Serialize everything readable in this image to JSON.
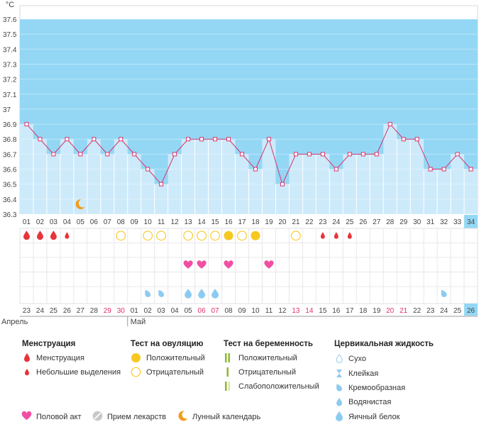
{
  "chart_data": {
    "type": "line",
    "unit_label": "°C",
    "ylim": [
      36.3,
      37.6
    ],
    "y_ticks": [
      "36.3",
      "36.4",
      "36.5",
      "36.6",
      "36.7",
      "36.8",
      "36.9",
      "37",
      "37.1",
      "37.2",
      "37.3",
      "37.4",
      "37.5",
      "37.6"
    ],
    "days": [
      "01",
      "02",
      "03",
      "04",
      "05",
      "06",
      "07",
      "08",
      "09",
      "10",
      "11",
      "12",
      "13",
      "14",
      "15",
      "16",
      "17",
      "18",
      "19",
      "20",
      "21",
      "22",
      "23",
      "24",
      "25",
      "26",
      "27",
      "28",
      "29",
      "30",
      "31",
      "32",
      "33",
      "34"
    ],
    "current_day": "34",
    "temperatures": [
      36.9,
      36.8,
      36.7,
      36.8,
      36.7,
      36.8,
      36.7,
      36.8,
      36.7,
      36.6,
      36.5,
      36.7,
      36.8,
      36.8,
      36.8,
      36.8,
      36.7,
      36.6,
      36.8,
      36.5,
      36.7,
      36.7,
      36.7,
      36.6,
      36.7,
      36.7,
      36.7,
      36.9,
      36.8,
      36.8,
      36.6,
      36.6,
      36.7,
      36.6
    ],
    "dates": [
      "23",
      "24",
      "25",
      "26",
      "27",
      "28",
      "29",
      "30",
      "01",
      "02",
      "03",
      "04",
      "05",
      "06",
      "07",
      "08",
      "09",
      "10",
      "11",
      "12",
      "13",
      "14",
      "15",
      "16",
      "17",
      "18",
      "19",
      "20",
      "21",
      "22",
      "23",
      "24",
      "25",
      "26"
    ],
    "weekend_days": [
      6,
      7,
      13,
      14,
      20,
      21,
      27,
      28
    ],
    "today_index": 33,
    "months": [
      {
        "label": "Апрель",
        "start_index": 0
      },
      {
        "label": "Май",
        "start_index": 8
      }
    ],
    "moon_day": 5,
    "menstruation": [
      {
        "day": 1,
        "kind": "heavy"
      },
      {
        "day": 2,
        "kind": "heavy"
      },
      {
        "day": 3,
        "kind": "heavy"
      },
      {
        "day": 4,
        "kind": "light"
      },
      {
        "day": 23,
        "kind": "light"
      },
      {
        "day": 24,
        "kind": "light"
      },
      {
        "day": 25,
        "kind": "light"
      }
    ],
    "ovulation_tests": [
      {
        "day": 8,
        "result": "negative"
      },
      {
        "day": 10,
        "result": "negative"
      },
      {
        "day": 11,
        "result": "negative"
      },
      {
        "day": 13,
        "result": "negative"
      },
      {
        "day": 14,
        "result": "negative"
      },
      {
        "day": 15,
        "result": "negative"
      },
      {
        "day": 16,
        "result": "positive"
      },
      {
        "day": 17,
        "result": "negative"
      },
      {
        "day": 18,
        "result": "positive"
      },
      {
        "day": 21,
        "result": "negative"
      }
    ],
    "intercourse_days": [
      13,
      14,
      16,
      19
    ],
    "cervical_fluid": [
      {
        "day": 10,
        "kind": "creamy"
      },
      {
        "day": 11,
        "kind": "creamy"
      },
      {
        "day": 13,
        "kind": "egg_white"
      },
      {
        "day": 14,
        "kind": "egg_white"
      },
      {
        "day": 15,
        "kind": "egg_white"
      },
      {
        "day": 32,
        "kind": "creamy"
      }
    ]
  },
  "colors": {
    "area_fill": "#cdeafa",
    "upper_fill": "#94d7f5",
    "grid": "#e8e8e8",
    "line": "#d6336c",
    "marker": "#e0306a",
    "drop": "#e8333a",
    "heart": "#f04fa2",
    "ovulation": "#f7c820",
    "fluid": "#8ccbf1",
    "weekend_text": "#e0306a",
    "today_bg": "#94d7f5",
    "moon": "#f39c1a"
  },
  "legend": {
    "menstruation": {
      "title": "Менструация",
      "items": [
        {
          "label": "Менструация",
          "icon": "heavy-drop-icon"
        },
        {
          "label": "Небольшие выделения",
          "icon": "light-drop-icon"
        }
      ]
    },
    "ovulation_test": {
      "title": "Тест на овуляцию",
      "items": [
        {
          "label": "Положительный",
          "icon": "filled-circle-icon"
        },
        {
          "label": "Отрицательный",
          "icon": "empty-circle-icon"
        }
      ]
    },
    "pregnancy_test": {
      "title": "Тест на беременность",
      "items": [
        {
          "label": "Положительный",
          "icon": "double-bar-icon"
        },
        {
          "label": "Отрицательный",
          "icon": "single-bar-icon"
        },
        {
          "label": "Слабоположительный",
          "icon": "faint-bar-icon"
        }
      ]
    },
    "cervical_fluid": {
      "title": "Цервикальная жидкость",
      "items": [
        {
          "label": "Сухо",
          "icon": "dry-drop-icon"
        },
        {
          "label": "Клейкая",
          "icon": "sticky-icon"
        },
        {
          "label": "Кремообразная",
          "icon": "creamy-drop-icon"
        },
        {
          "label": "Водянистая",
          "icon": "watery-drop-icon"
        },
        {
          "label": "Яичный белок",
          "icon": "egg-white-drop-icon"
        }
      ]
    },
    "bottom": [
      {
        "label": "Половой акт",
        "icon": "heart-icon"
      },
      {
        "label": "Прием лекарств",
        "icon": "pill-icon"
      },
      {
        "label": "Лунный календарь",
        "icon": "moon-icon"
      }
    ]
  }
}
